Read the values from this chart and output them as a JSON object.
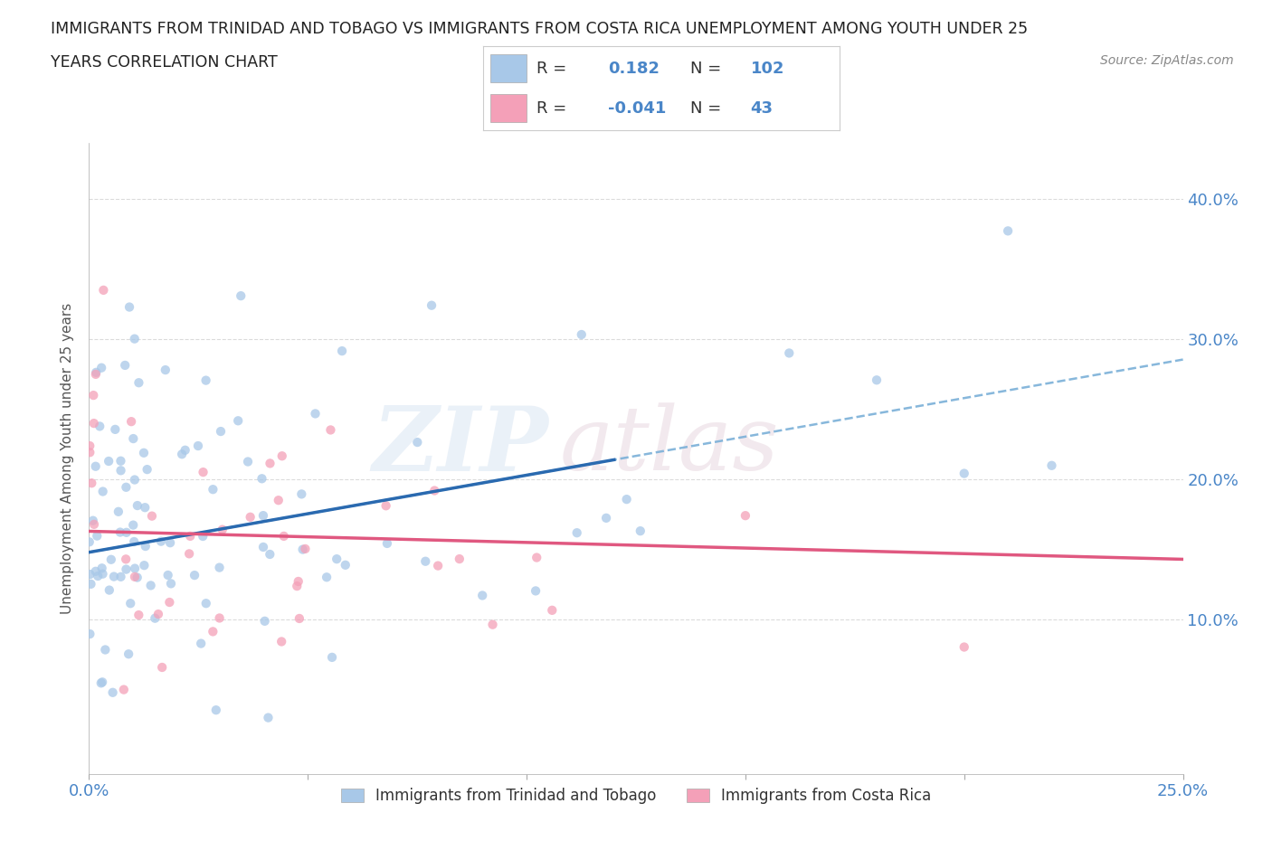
{
  "title_line1": "IMMIGRANTS FROM TRINIDAD AND TOBAGO VS IMMIGRANTS FROM COSTA RICA UNEMPLOYMENT AMONG YOUTH UNDER 25",
  "title_line2": "YEARS CORRELATION CHART",
  "source": "Source: ZipAtlas.com",
  "ylabel": "Unemployment Among Youth under 25 years",
  "xlim": [
    0.0,
    0.25
  ],
  "ylim": [
    -0.01,
    0.44
  ],
  "legend_labels": [
    "Immigrants from Trinidad and Tobago",
    "Immigrants from Costa Rica"
  ],
  "legend_r_tt": "0.182",
  "legend_n_tt": "102",
  "legend_r_cr": "-0.041",
  "legend_n_cr": "43",
  "blue_color": "#a8c8e8",
  "pink_color": "#f4a0b8",
  "blue_line_color": "#2a6ab0",
  "pink_line_color": "#e05880",
  "tick_color": "#4a86c8",
  "grid_color": "#cccccc",
  "tt_intercept": 0.148,
  "tt_slope": 0.55,
  "cr_intercept": 0.163,
  "cr_slope": -0.08
}
